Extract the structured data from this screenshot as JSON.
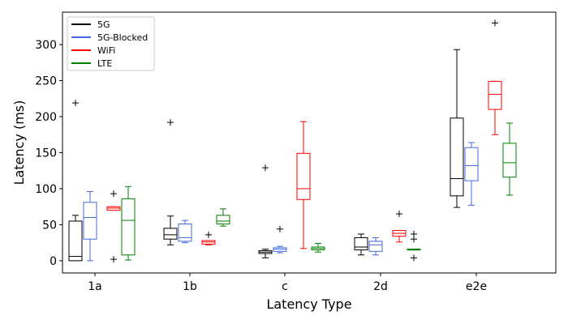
{
  "chart_data": {
    "type": "box",
    "title": "",
    "xlabel": "Latency Type",
    "ylabel": "Latency (ms)",
    "ylim": [
      -17,
      345
    ],
    "yticks": [
      0,
      50,
      100,
      150,
      200,
      250,
      300
    ],
    "categories": [
      "1a",
      "1b",
      "c",
      "2d",
      "e2e"
    ],
    "legend_position": "top-left",
    "series": [
      {
        "name": "5G",
        "color": "#000000",
        "boxes": [
          {
            "whisker_low": 0,
            "q1": 0,
            "median": 6,
            "q3": 55,
            "whisker_high": 63,
            "outliers": [
              219
            ]
          },
          {
            "whisker_low": 22,
            "q1": 30,
            "median": 36,
            "q3": 45,
            "whisker_high": 62,
            "outliers": [
              192
            ]
          },
          {
            "whisker_low": 4,
            "q1": 10,
            "median": 12,
            "q3": 14,
            "whisker_high": 16,
            "outliers": [
              129
            ]
          },
          {
            "whisker_low": 8,
            "q1": 15,
            "median": 19,
            "q3": 32,
            "whisker_high": 37,
            "outliers": []
          },
          {
            "whisker_low": 74,
            "q1": 90,
            "median": 114,
            "q3": 198,
            "whisker_high": 293,
            "outliers": []
          }
        ]
      },
      {
        "name": "5G-Blocked",
        "color": "#4169e1",
        "boxes": [
          {
            "whisker_low": 0,
            "q1": 30,
            "median": 60,
            "q3": 81,
            "whisker_high": 96,
            "outliers": []
          },
          {
            "whisker_low": 25,
            "q1": 27,
            "median": 32,
            "q3": 51,
            "whisker_high": 56,
            "outliers": []
          },
          {
            "whisker_low": 11,
            "q1": 13,
            "median": 16,
            "q3": 18,
            "whisker_high": 20,
            "outliers": [
              44
            ]
          },
          {
            "whisker_low": 8,
            "q1": 13,
            "median": 22,
            "q3": 27,
            "whisker_high": 32,
            "outliers": []
          },
          {
            "whisker_low": 77,
            "q1": 111,
            "median": 132,
            "q3": 157,
            "whisker_high": 164,
            "outliers": []
          }
        ]
      },
      {
        "name": "WiFi",
        "color": "#ff0000",
        "boxes": [
          {
            "whisker_low": 70,
            "q1": 70,
            "median": 73,
            "q3": 75,
            "whisker_high": 75,
            "outliers": [
              93,
              2
            ]
          },
          {
            "whisker_low": 22,
            "q1": 23,
            "median": 26,
            "q3": 28,
            "whisker_high": 28,
            "outliers": [
              36
            ]
          },
          {
            "whisker_low": 17,
            "q1": 85,
            "median": 100,
            "q3": 149,
            "whisker_high": 193,
            "outliers": []
          },
          {
            "whisker_low": 26,
            "q1": 34,
            "median": 38,
            "q3": 42,
            "whisker_high": 42,
            "outliers": [
              65
            ]
          },
          {
            "whisker_low": 175,
            "q1": 210,
            "median": 231,
            "q3": 249,
            "whisker_high": 249,
            "outliers": [
              330
            ]
          }
        ]
      },
      {
        "name": "LTE",
        "color": "#008000",
        "boxes": [
          {
            "whisker_low": 1,
            "q1": 8,
            "median": 56,
            "q3": 86,
            "whisker_high": 103,
            "outliers": []
          },
          {
            "whisker_low": 48,
            "q1": 51,
            "median": 55,
            "q3": 63,
            "whisker_high": 72,
            "outliers": []
          },
          {
            "whisker_low": 12,
            "q1": 15,
            "median": 17,
            "q3": 19,
            "whisker_high": 24,
            "outliers": []
          },
          {
            "whisker_low": 15,
            "q1": 15,
            "median": 16,
            "q3": 16,
            "whisker_high": 16,
            "outliers": [
              37,
              30,
              4
            ]
          },
          {
            "whisker_low": 91,
            "q1": 116,
            "median": 136,
            "q3": 163,
            "whisker_high": 191,
            "outliers": []
          }
        ]
      }
    ]
  }
}
